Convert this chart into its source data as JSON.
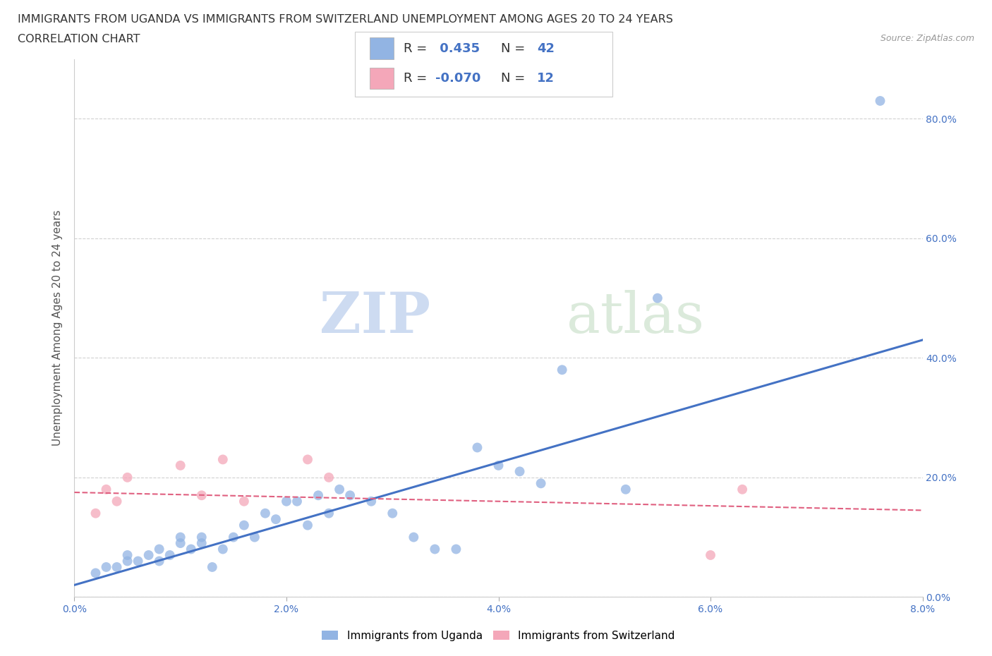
{
  "title_line1": "IMMIGRANTS FROM UGANDA VS IMMIGRANTS FROM SWITZERLAND UNEMPLOYMENT AMONG AGES 20 TO 24 YEARS",
  "title_line2": "CORRELATION CHART",
  "source_text": "Source: ZipAtlas.com",
  "ylabel": "Unemployment Among Ages 20 to 24 years",
  "xlim": [
    0.0,
    0.08
  ],
  "ylim": [
    0.0,
    0.9
  ],
  "yticks": [
    0.0,
    0.2,
    0.4,
    0.6,
    0.8
  ],
  "ytick_labels": [
    "0.0%",
    "20.0%",
    "40.0%",
    "60.0%",
    "80.0%"
  ],
  "xticks": [
    0.0,
    0.02,
    0.04,
    0.06,
    0.08
  ],
  "xtick_labels": [
    "0.0%",
    "2.0%",
    "4.0%",
    "6.0%",
    "8.0%"
  ],
  "uganda_color": "#92B4E3",
  "switzerland_color": "#F4A7B9",
  "uganda_line_color": "#4472C4",
  "switzerland_line_color": "#E06080",
  "r_uganda": 0.435,
  "n_uganda": 42,
  "r_switzerland": -0.07,
  "n_switzerland": 12,
  "legend_label_uganda": "Immigrants from Uganda",
  "legend_label_switzerland": "Immigrants from Switzerland",
  "watermark_zip": "ZIP",
  "watermark_atlas": "atlas",
  "uganda_scatter_x": [
    0.002,
    0.003,
    0.004,
    0.005,
    0.005,
    0.006,
    0.007,
    0.008,
    0.008,
    0.009,
    0.01,
    0.01,
    0.011,
    0.012,
    0.012,
    0.013,
    0.014,
    0.015,
    0.016,
    0.017,
    0.018,
    0.019,
    0.02,
    0.021,
    0.022,
    0.023,
    0.024,
    0.025,
    0.026,
    0.028,
    0.03,
    0.032,
    0.034,
    0.036,
    0.038,
    0.04,
    0.042,
    0.044,
    0.046,
    0.052,
    0.055,
    0.076
  ],
  "uganda_scatter_y": [
    0.04,
    0.05,
    0.05,
    0.06,
    0.07,
    0.06,
    0.07,
    0.06,
    0.08,
    0.07,
    0.09,
    0.1,
    0.08,
    0.09,
    0.1,
    0.05,
    0.08,
    0.1,
    0.12,
    0.1,
    0.14,
    0.13,
    0.16,
    0.16,
    0.12,
    0.17,
    0.14,
    0.18,
    0.17,
    0.16,
    0.14,
    0.1,
    0.08,
    0.08,
    0.25,
    0.22,
    0.21,
    0.19,
    0.38,
    0.18,
    0.5,
    0.83
  ],
  "switzerland_scatter_x": [
    0.002,
    0.003,
    0.004,
    0.005,
    0.01,
    0.012,
    0.014,
    0.016,
    0.022,
    0.024,
    0.06,
    0.063
  ],
  "switzerland_scatter_y": [
    0.14,
    0.18,
    0.16,
    0.2,
    0.22,
    0.17,
    0.23,
    0.16,
    0.23,
    0.2,
    0.07,
    0.18
  ],
  "uganda_trend_x": [
    0.0,
    0.08
  ],
  "uganda_trend_y": [
    0.02,
    0.43
  ],
  "switzerland_trend_x": [
    0.0,
    0.08
  ],
  "switzerland_trend_y": [
    0.175,
    0.145
  ],
  "background_color": "#FFFFFF",
  "grid_color": "#CCCCCC",
  "title_fontsize": 11.5,
  "axis_label_fontsize": 11,
  "tick_fontsize": 10,
  "tick_color": "#4472C4",
  "marker_size": 100
}
